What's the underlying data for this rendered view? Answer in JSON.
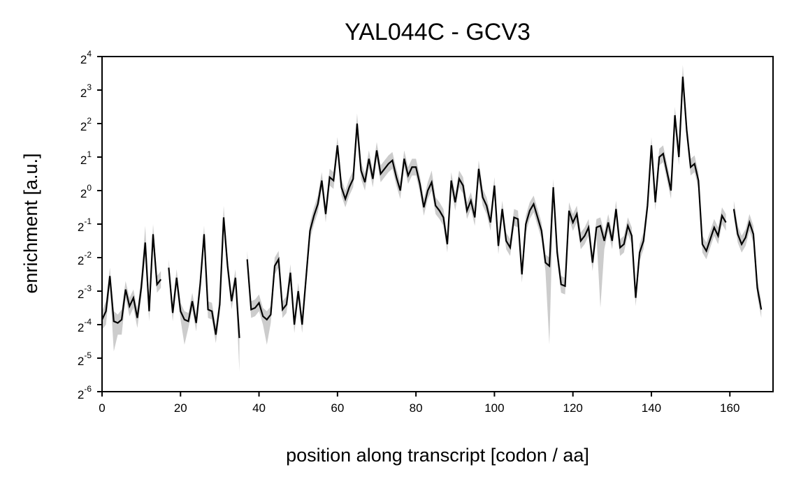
{
  "chart_data": {
    "type": "line",
    "title": "YAL044C - GCV3",
    "xlabel": "position along transcript [codon / aa]",
    "ylabel": "enrichment [a.u.]",
    "xlim": [
      0,
      171
    ],
    "ylim_log2": [
      -6,
      4
    ],
    "y_scale": "log2",
    "x_ticks": [
      "0",
      "20",
      "40",
      "60",
      "80",
      "100",
      "120",
      "140",
      "160"
    ],
    "y_tick_base": "2",
    "y_tick_exponents": [
      "-6",
      "-5",
      "-4",
      "-3",
      "-2",
      "-1",
      "0",
      "1",
      "2",
      "3",
      "4"
    ],
    "line_color": "#000000",
    "band_color": "#cccccc",
    "grid": false,
    "series": [
      {
        "x": [
          0,
          1,
          2,
          3,
          4,
          5,
          6,
          7,
          8,
          9,
          10,
          11,
          12,
          13,
          14,
          15,
          16,
          17,
          18,
          19,
          20,
          21,
          22,
          23,
          24,
          25,
          26,
          27,
          28,
          29,
          30,
          31,
          32,
          33,
          34,
          35,
          36,
          37,
          38,
          39,
          40,
          41,
          42,
          43,
          44,
          45,
          46,
          47,
          48,
          49,
          50,
          51,
          52,
          53,
          54,
          55,
          56,
          57,
          58,
          59,
          60,
          61,
          62,
          63,
          64,
          65,
          66,
          67,
          68,
          69,
          70,
          71,
          72,
          73,
          74,
          75,
          76,
          77,
          78,
          79,
          80,
          81,
          82,
          83,
          84,
          85,
          86,
          87,
          88,
          89,
          90,
          91,
          92,
          93,
          94,
          95,
          96,
          97,
          98,
          99,
          100,
          101,
          102,
          103,
          104,
          105,
          106,
          107,
          108,
          109,
          110,
          111,
          112,
          113,
          114,
          115,
          116,
          117,
          118,
          119,
          120,
          121,
          122,
          123,
          124,
          125,
          126,
          127,
          128,
          129,
          130,
          131,
          132,
          133,
          134,
          135,
          136,
          137,
          138,
          139,
          140,
          141,
          142,
          143,
          144,
          145,
          146,
          147,
          148,
          149,
          150,
          151,
          152,
          153,
          154,
          155,
          156,
          157,
          158,
          159,
          160,
          161,
          162,
          163,
          164,
          165,
          166,
          167,
          168,
          169
        ],
        "log2_enrichment": [
          -3.85,
          -3.6,
          -2.55,
          -3.9,
          -3.95,
          -3.85,
          -2.95,
          -3.45,
          -3.2,
          -3.8,
          -2.9,
          -1.55,
          -3.6,
          -1.3,
          -2.8,
          -2.65,
          null,
          -2.3,
          -3.65,
          -2.6,
          -3.6,
          -3.85,
          -3.9,
          -3.3,
          -3.95,
          -2.8,
          -1.3,
          -3.55,
          -3.6,
          -4.3,
          -3.4,
          -0.8,
          -2.25,
          -3.3,
          -2.6,
          -4.4,
          null,
          -2.05,
          -3.55,
          -3.5,
          -3.35,
          -3.75,
          -3.85,
          -3.7,
          -2.25,
          -2.05,
          -3.55,
          -3.4,
          -2.45,
          -4.0,
          -3.0,
          -4.0,
          -2.6,
          -1.2,
          -0.75,
          -0.4,
          0.3,
          -0.7,
          0.4,
          0.3,
          1.35,
          0.1,
          -0.25,
          0.1,
          0.35,
          2.0,
          0.6,
          0.25,
          0.95,
          0.35,
          1.2,
          0.5,
          0.65,
          0.8,
          0.9,
          0.4,
          0.0,
          0.95,
          0.45,
          0.7,
          0.7,
          0.2,
          -0.5,
          0.0,
          0.25,
          -0.45,
          -0.6,
          -0.8,
          -1.6,
          0.3,
          -0.35,
          0.35,
          0.15,
          -0.6,
          -0.3,
          -0.8,
          0.65,
          -0.2,
          -0.45,
          -0.95,
          0.15,
          -1.65,
          -0.55,
          -1.5,
          -1.7,
          -0.8,
          -0.85,
          -2.5,
          -1.0,
          -0.6,
          -0.4,
          -0.8,
          -1.2,
          -2.15,
          -2.25,
          0.1,
          -1.85,
          -2.8,
          -2.85,
          -0.6,
          -0.95,
          -0.7,
          -1.5,
          -1.35,
          -1.1,
          -2.15,
          -1.1,
          -1.05,
          -1.5,
          -0.95,
          -1.5,
          -0.55,
          -1.7,
          -1.6,
          -1.05,
          -1.35,
          -3.2,
          -1.85,
          -1.5,
          -0.45,
          1.35,
          -0.35,
          1.0,
          1.1,
          0.55,
          0.0,
          2.25,
          1.0,
          3.4,
          1.8,
          0.7,
          0.8,
          0.3,
          -1.6,
          -1.8,
          -1.45,
          -1.1,
          -1.35,
          -0.75,
          -0.95,
          null,
          -0.55,
          -1.3,
          -1.6,
          -1.4,
          -0.95,
          -1.3,
          -2.9,
          -3.55
        ],
        "log2_band_low": [
          -4.15,
          -4.0,
          -2.85,
          -4.8,
          -4.3,
          -4.3,
          -3.2,
          -3.75,
          -3.5,
          -4.1,
          -3.2,
          -1.95,
          -3.9,
          -1.65,
          -3.05,
          -2.9,
          null,
          -2.55,
          -3.9,
          -2.85,
          -3.85,
          -4.6,
          -4.1,
          -3.55,
          -4.2,
          -3.05,
          -1.6,
          -3.8,
          -3.85,
          -4.55,
          -3.65,
          -1.15,
          -2.5,
          -3.55,
          -2.85,
          -5.4,
          null,
          -2.3,
          -3.8,
          -3.75,
          -3.6,
          -4.0,
          -4.6,
          -3.95,
          -2.5,
          -2.3,
          -3.8,
          -3.65,
          -2.7,
          -4.25,
          -3.25,
          -4.25,
          -2.85,
          -1.45,
          -1.0,
          -0.65,
          0.05,
          -0.95,
          0.15,
          0.05,
          1.1,
          -0.15,
          -0.5,
          -0.15,
          0.1,
          1.6,
          0.35,
          0.0,
          0.7,
          0.1,
          0.95,
          0.25,
          0.4,
          0.55,
          0.65,
          0.15,
          -0.25,
          0.7,
          0.2,
          0.45,
          0.45,
          -0.05,
          -0.75,
          -0.25,
          0.0,
          -0.7,
          -0.85,
          -1.05,
          -1.85,
          0.05,
          -0.6,
          0.1,
          -0.1,
          -0.85,
          -0.55,
          -1.05,
          0.3,
          -0.45,
          -0.7,
          -1.2,
          -0.1,
          -1.9,
          -0.8,
          -1.75,
          -1.95,
          -1.05,
          -1.1,
          -2.75,
          -1.25,
          -0.85,
          -0.65,
          -1.05,
          -1.45,
          -2.4,
          -4.6,
          -0.25,
          -2.1,
          -3.05,
          -3.1,
          -0.85,
          -1.2,
          -0.95,
          -1.75,
          -1.6,
          -1.35,
          -2.4,
          -1.35,
          -3.5,
          -1.75,
          -1.2,
          -1.75,
          -0.8,
          -1.95,
          -1.85,
          -1.3,
          -1.6,
          -3.45,
          -2.1,
          -1.75,
          -0.7,
          1.05,
          -0.6,
          0.75,
          0.85,
          0.3,
          -0.25,
          1.95,
          0.75,
          3.05,
          1.55,
          0.45,
          0.55,
          0.05,
          -1.85,
          -2.05,
          -1.7,
          -1.35,
          -1.6,
          -1.0,
          -1.2,
          null,
          -0.8,
          -1.55,
          -1.85,
          -1.65,
          -1.2,
          -1.55,
          -3.15,
          -3.8
        ],
        "log2_band_high": [
          -3.6,
          -3.3,
          -2.3,
          -3.6,
          -3.7,
          -3.55,
          -2.7,
          -3.2,
          -2.95,
          -3.55,
          -2.6,
          -1.05,
          -3.3,
          -1.0,
          -2.55,
          -2.4,
          null,
          -2.05,
          -3.4,
          -2.35,
          -3.35,
          -3.6,
          -3.65,
          -3.05,
          -3.7,
          -2.55,
          -1.05,
          -3.3,
          -3.35,
          -4.05,
          -3.15,
          -0.45,
          -2.0,
          -3.05,
          -2.35,
          -4.15,
          null,
          -1.8,
          -3.3,
          -3.25,
          -3.1,
          -3.5,
          -3.6,
          -3.45,
          -2.0,
          -1.8,
          -3.3,
          -3.15,
          -2.2,
          -3.75,
          -2.75,
          -3.75,
          -2.35,
          -0.95,
          -0.5,
          -0.15,
          0.55,
          -0.45,
          0.65,
          0.55,
          1.6,
          0.35,
          0.0,
          0.35,
          0.6,
          2.3,
          0.85,
          0.5,
          1.2,
          0.6,
          1.45,
          0.75,
          0.9,
          1.05,
          1.15,
          0.65,
          0.25,
          1.2,
          0.7,
          0.95,
          0.95,
          0.45,
          -0.25,
          0.25,
          0.6,
          -0.2,
          -0.35,
          -0.55,
          -1.35,
          0.55,
          -0.1,
          0.6,
          0.4,
          -0.35,
          -0.05,
          -0.55,
          0.9,
          0.05,
          -0.2,
          -0.7,
          0.4,
          -1.4,
          -0.3,
          -1.25,
          -1.45,
          -0.55,
          -0.6,
          -2.25,
          -0.75,
          -0.35,
          -0.15,
          -0.55,
          -0.95,
          -1.9,
          -2.0,
          0.35,
          -1.6,
          -2.55,
          -2.6,
          -0.35,
          -0.7,
          -0.45,
          -1.25,
          -1.1,
          -0.85,
          -1.9,
          -0.85,
          -0.8,
          -1.25,
          -0.7,
          -1.25,
          -0.3,
          -1.45,
          -1.35,
          -0.8,
          -1.1,
          -2.95,
          -1.6,
          -1.25,
          -0.2,
          1.6,
          -0.1,
          1.25,
          1.35,
          0.8,
          0.25,
          2.5,
          1.25,
          3.75,
          2.05,
          0.95,
          1.05,
          0.55,
          -1.35,
          -1.55,
          -1.2,
          -0.85,
          -1.1,
          -0.5,
          -0.7,
          null,
          -0.3,
          -1.05,
          -1.35,
          -1.15,
          -0.7,
          -1.05,
          -2.65,
          -3.3
        ]
      }
    ]
  }
}
